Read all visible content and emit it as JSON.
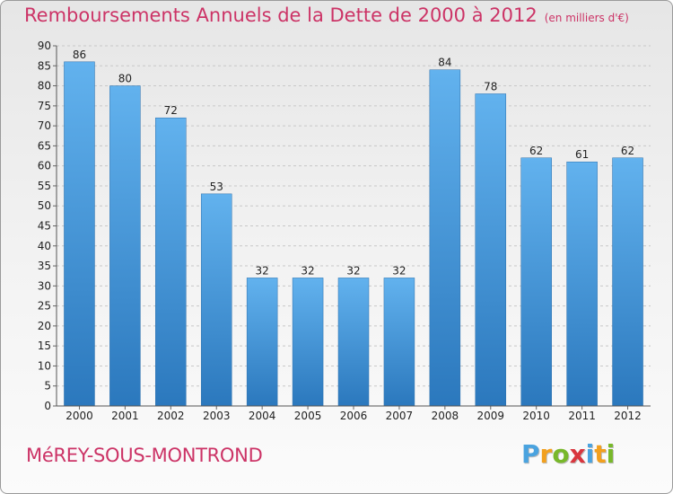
{
  "chart_data": {
    "type": "bar",
    "title": "Remboursements Annuels de la Dette de 2000 à 2012",
    "unit": "(en milliers d'€)",
    "categories": [
      "2000",
      "2001",
      "2002",
      "2003",
      "2004",
      "2005",
      "2006",
      "2007",
      "2008",
      "2009",
      "2010",
      "2011",
      "2012"
    ],
    "values": [
      86,
      80,
      72,
      53,
      32,
      32,
      32,
      32,
      84,
      78,
      62,
      61,
      62
    ],
    "ylim": [
      0,
      90
    ],
    "yticks": [
      0,
      5,
      10,
      15,
      20,
      25,
      30,
      35,
      40,
      45,
      50,
      55,
      60,
      65,
      70,
      75,
      80,
      85,
      90
    ],
    "grid": true,
    "legend": "none",
    "bar_color": "#3d8fd6",
    "title_color": "#cc3366"
  },
  "place_name": "MéREY-SOUS-MONTROND",
  "logo": {
    "text": "Proxiti",
    "letters": [
      {
        "ch": "P",
        "color": "#4aa3df"
      },
      {
        "ch": "r",
        "color": "#f2a01e"
      },
      {
        "ch": "o",
        "color": "#78b82a"
      },
      {
        "ch": "x",
        "color": "#d9363e"
      },
      {
        "ch": "i",
        "color": "#4aa3df"
      },
      {
        "ch": "t",
        "color": "#f2a01e"
      },
      {
        "ch": "i",
        "color": "#78b82a"
      }
    ]
  }
}
